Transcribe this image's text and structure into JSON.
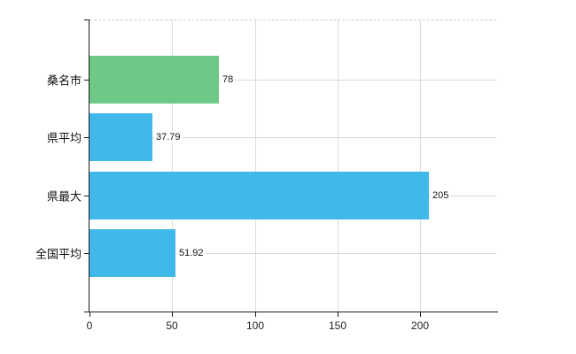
{
  "chart_data": {
    "type": "bar",
    "orientation": "horizontal",
    "title": "",
    "categories": [
      "桑名市",
      "県平均",
      "県最大",
      "全国平均"
    ],
    "values": [
      78,
      37.79,
      205,
      51.92
    ],
    "value_labels": [
      "78",
      "37.79",
      "205",
      "51.92"
    ],
    "bar_colors": [
      "#6ec887",
      "#41b8ea",
      "#41b8ea",
      "#41b8ea"
    ],
    "xlim": [
      0,
      246
    ],
    "x_ticks": [
      0,
      50,
      100,
      150,
      200
    ],
    "x_tick_labels": [
      "0",
      "50",
      "100",
      "150",
      "200"
    ],
    "grid": true,
    "legend": "none",
    "colors": {
      "highlight_bar": "#6ec887",
      "default_bar": "#41b8ea",
      "axis": "#1a1a1a",
      "gridline": "#d6dad6",
      "background": "#ffffff",
      "text": "#111111"
    }
  }
}
